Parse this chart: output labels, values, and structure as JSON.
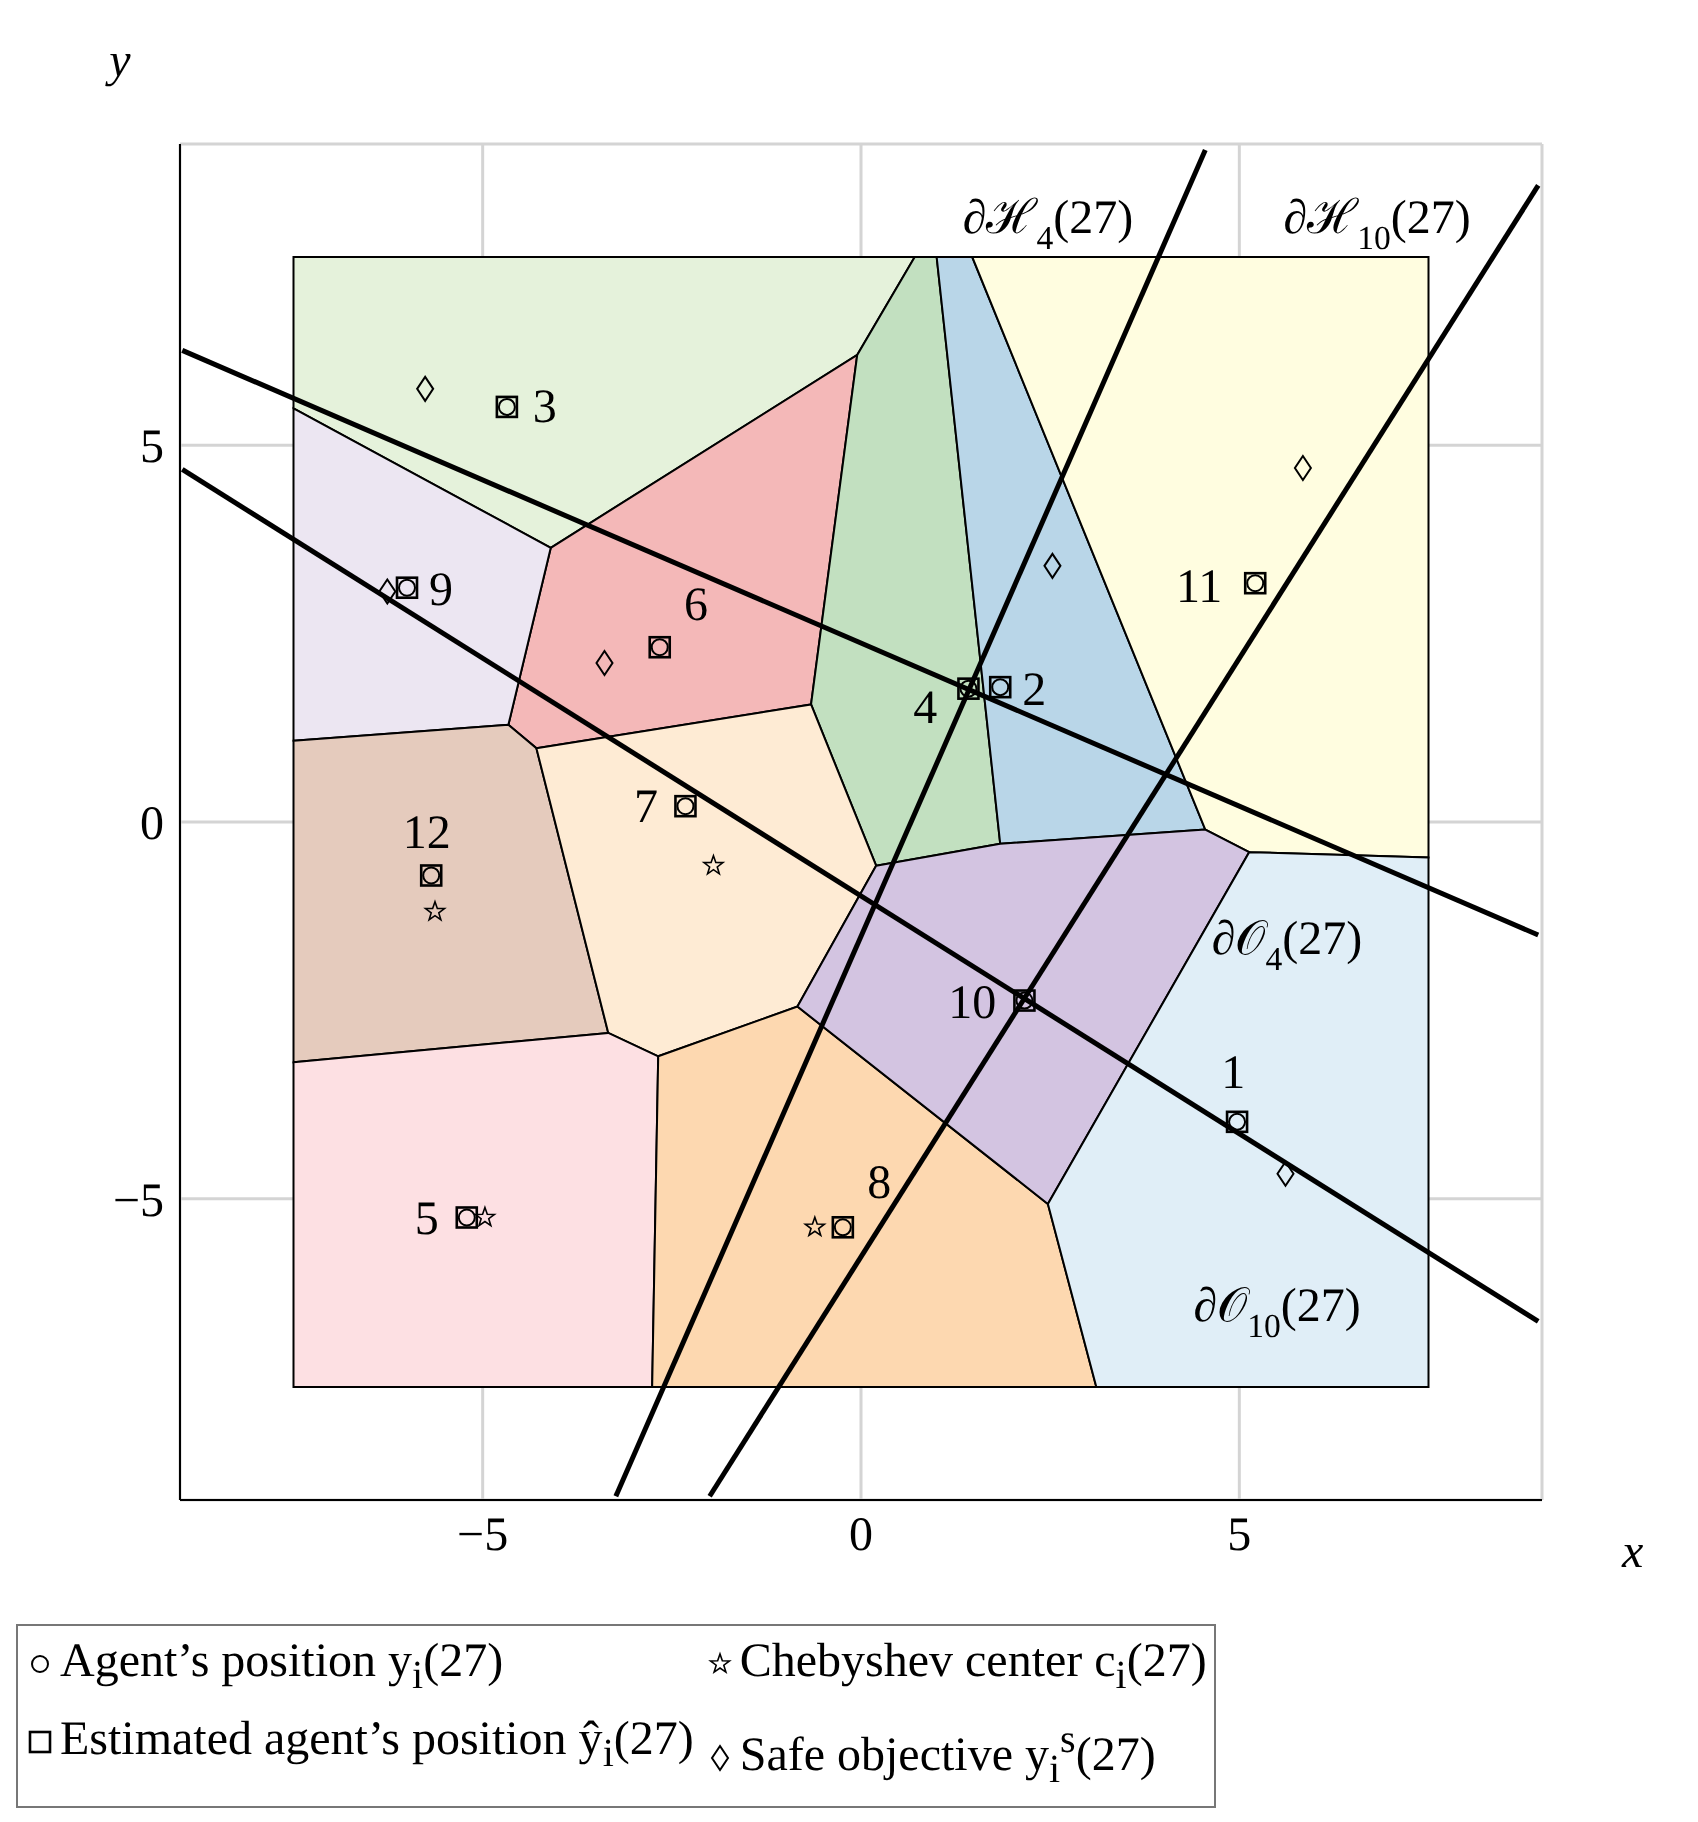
{
  "chart_data": {
    "type": "scatter",
    "xlabel": "x",
    "ylabel": "y",
    "xlim": [
      -9,
      9
    ],
    "ylim": [
      -9,
      9
    ],
    "xticks": [
      {
        "value": -5,
        "label": "−5"
      },
      0,
      5
    ],
    "yticks": [
      {
        "value": -5,
        "label": "−5"
      },
      0,
      5
    ],
    "grid": true,
    "legend": "bottom",
    "series": [
      {
        "type": "area",
        "color": "#e5f2db",
        "x": [
          -7.5,
          0.71,
          -0.05,
          -4.1,
          -7.5
        ],
        "values": [
          7.5,
          7.5,
          6.2,
          3.64,
          5.49
        ]
      },
      {
        "type": "area",
        "color": "#f4b8b8",
        "x": [
          -4.1,
          -0.05,
          -0.66,
          -4.29,
          -4.66
        ],
        "values": [
          3.64,
          6.2,
          1.56,
          0.98,
          1.29
        ]
      },
      {
        "type": "area",
        "color": "#c2e0c0",
        "x": [
          0.71,
          1.0,
          1.84,
          0.2,
          -0.66,
          -0.05
        ],
        "values": [
          7.5,
          7.5,
          -0.29,
          -0.58,
          1.56,
          6.2
        ]
      },
      {
        "type": "area",
        "color": "#b9d6e8",
        "x": [
          1.0,
          1.47,
          4.55,
          1.84
        ],
        "values": [
          7.5,
          7.5,
          -0.1,
          -0.29
        ]
      },
      {
        "type": "area",
        "color": "#fffde0",
        "x": [
          1.47,
          7.5,
          7.5,
          5.13,
          4.55
        ],
        "values": [
          7.5,
          7.5,
          -0.47,
          -0.4,
          -0.1
        ]
      },
      {
        "type": "area",
        "color": "#ece6f2",
        "x": [
          -7.5,
          -4.1,
          -4.66,
          -7.5
        ],
        "values": [
          5.49,
          3.64,
          1.29,
          1.08
        ]
      },
      {
        "type": "area",
        "color": "#e5cbbd",
        "x": [
          -7.5,
          -4.66,
          -4.29,
          -3.34,
          -7.5
        ],
        "values": [
          1.08,
          1.29,
          0.98,
          -2.8,
          -3.19
        ]
      },
      {
        "type": "area",
        "color": "#feebd4",
        "x": [
          -4.29,
          -0.66,
          0.2,
          -0.84,
          -2.68,
          -3.34
        ],
        "values": [
          0.98,
          1.56,
          -0.58,
          -2.45,
          -3.11,
          -2.8
        ]
      },
      {
        "type": "area",
        "color": "#fde0e3",
        "x": [
          -7.5,
          -3.34,
          -2.68,
          -2.76,
          -7.5
        ],
        "values": [
          -3.19,
          -2.8,
          -3.11,
          -7.5,
          -7.5
        ]
      },
      {
        "type": "area",
        "color": "#fdd8b0",
        "x": [
          -2.68,
          -0.84,
          2.47,
          3.11,
          -2.76
        ],
        "values": [
          -3.11,
          -2.45,
          -5.07,
          -7.5,
          -7.5
        ]
      },
      {
        "type": "area",
        "color": "#d3c4e1",
        "x": [
          0.2,
          1.84,
          4.55,
          5.13,
          2.47,
          -0.84
        ],
        "values": [
          -0.58,
          -0.29,
          -0.1,
          -0.4,
          -5.07,
          -2.45
        ]
      },
      {
        "type": "area",
        "color": "#e0eef7",
        "x": [
          5.13,
          7.5,
          7.5,
          3.11,
          2.47
        ],
        "values": [
          -0.4,
          -0.47,
          -7.5,
          -7.5,
          -5.07
        ]
      },
      {
        "type": "line",
        "color": "#000000",
        "x": [
          -3.24,
          4.55
        ],
        "values": [
          -8.95,
          8.92
        ]
      },
      {
        "type": "line",
        "color": "#000000",
        "x": [
          -2.0,
          8.95
        ],
        "values": [
          -8.95,
          8.45
        ]
      },
      {
        "type": "line",
        "color": "#000000",
        "x": [
          -8.97,
          8.95
        ],
        "values": [
          6.26,
          -1.5
        ]
      },
      {
        "type": "line",
        "color": "#000000",
        "x": [
          -8.97,
          8.95
        ],
        "values": [
          4.68,
          -6.63
        ]
      },
      {
        "name": "Agent’s position y$_{i}$(27)",
        "marker": "circle",
        "color": "#000000",
        "x": [
          4.97,
          1.84,
          -4.68,
          1.42,
          -5.21,
          -2.66,
          -2.32,
          -0.24,
          -6.0,
          2.16,
          5.21,
          -5.68
        ],
        "values": [
          -3.98,
          1.79,
          5.51,
          1.77,
          -5.25,
          2.32,
          0.21,
          -5.38,
          3.11,
          -2.37,
          3.17,
          -0.71
        ]
      },
      {
        "name": "Chebyshev center c$_{i}$(27)",
        "marker": "star",
        "color": "#000000",
        "x": [
          -4.97,
          -1.95,
          -0.61,
          -5.63
        ],
        "values": [
          -5.25,
          -0.58,
          -5.38,
          -1.19
        ]
      },
      {
        "name": "Estimated agent’s position ŷ$_{i}$(27)",
        "marker": "square",
        "color": "#000000",
        "x": [
          4.97,
          1.84,
          -4.68,
          1.42,
          -5.21,
          -2.66,
          -2.32,
          -0.24,
          -6.0,
          2.16,
          5.21,
          -5.68
        ],
        "values": [
          -3.98,
          1.79,
          5.51,
          1.77,
          -5.25,
          2.32,
          0.21,
          -5.38,
          3.11,
          -2.37,
          3.17,
          -0.71
        ]
      },
      {
        "name": "Safe objective y$_{i}$$^{s}$(27)",
        "marker": "diamond",
        "color": "#000000",
        "x": [
          5.61,
          2.53,
          -5.76,
          -3.39,
          -6.26,
          5.84
        ],
        "values": [
          -4.67,
          3.4,
          5.75,
          2.11,
          3.06,
          4.7
        ]
      }
    ],
    "annotations": [
      "1",
      "2",
      "3",
      "4",
      "5",
      "6",
      "7",
      "8",
      "9",
      "10",
      "11",
      "12",
      "∂ℋ$_{4}$(27)",
      "∂ℋ$_{10}$(27)",
      "∂𝒪$_{4}$(27)",
      "∂𝒪$_{10}$(27)"
    ]
  }
}
